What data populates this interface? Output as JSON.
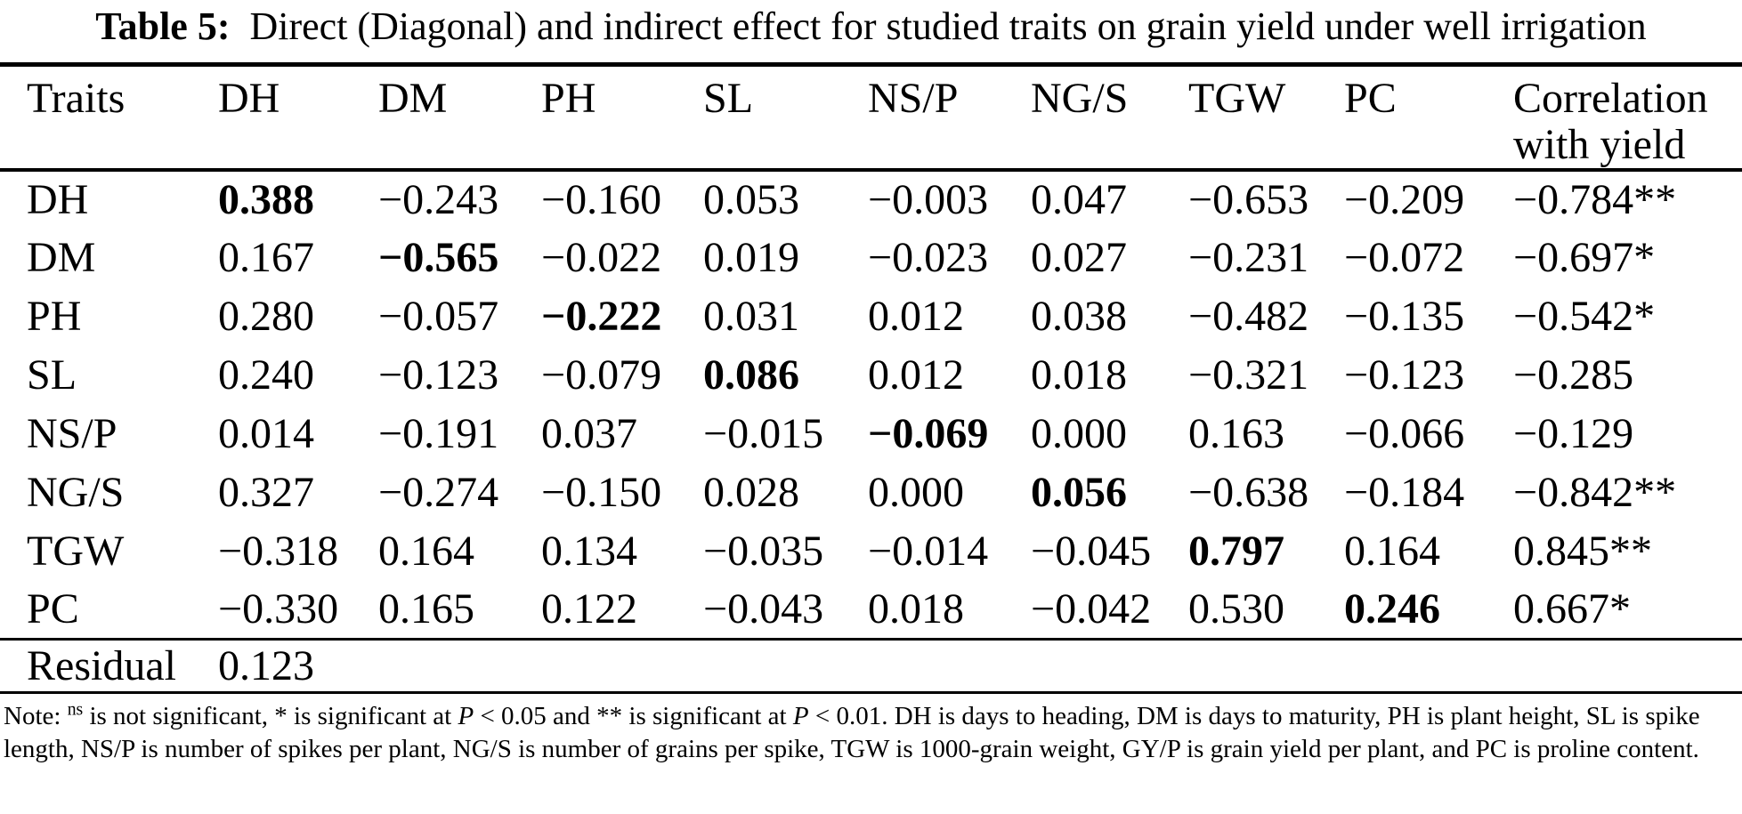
{
  "title": {
    "label": "Table 5:",
    "text": "Direct (Diagonal) and indirect effect for studied traits on grain yield under well irrigation"
  },
  "table": {
    "columns": [
      "Traits",
      "DH",
      "DM",
      "PH",
      "SL",
      "NS/P",
      "NG/S",
      "TGW",
      "PC",
      "Correlation with yield"
    ],
    "rows": [
      {
        "trait": "DH",
        "bold_col": 0,
        "values": [
          "0.388",
          "−0.243",
          "−0.160",
          "0.053",
          "−0.003",
          "0.047",
          "−0.653",
          "−0.209",
          "−0.784**"
        ]
      },
      {
        "trait": "DM",
        "bold_col": 1,
        "values": [
          "0.167",
          "−0.565",
          "−0.022",
          "0.019",
          "−0.023",
          "0.027",
          "−0.231",
          "−0.072",
          "−0.697*"
        ]
      },
      {
        "trait": "PH",
        "bold_col": 2,
        "values": [
          "0.280",
          "−0.057",
          "−0.222",
          "0.031",
          "0.012",
          "0.038",
          "−0.482",
          "−0.135",
          "−0.542*"
        ]
      },
      {
        "trait": "SL",
        "bold_col": 3,
        "values": [
          "0.240",
          "−0.123",
          "−0.079",
          "0.086",
          "0.012",
          "0.018",
          "−0.321",
          "−0.123",
          "−0.285"
        ]
      },
      {
        "trait": "NS/P",
        "bold_col": 4,
        "values": [
          "0.014",
          "−0.191",
          "0.037",
          "−0.015",
          "−0.069",
          "0.000",
          "0.163",
          "−0.066",
          "−0.129"
        ]
      },
      {
        "trait": "NG/S",
        "bold_col": 5,
        "values": [
          "0.327",
          "−0.274",
          "−0.150",
          "0.028",
          "0.000",
          "0.056",
          "−0.638",
          "−0.184",
          "−0.842**"
        ]
      },
      {
        "trait": "TGW",
        "bold_col": 6,
        "values": [
          "−0.318",
          "0.164",
          "0.134",
          "−0.035",
          "−0.014",
          "−0.045",
          "0.797",
          "0.164",
          "0.845**"
        ]
      },
      {
        "trait": "PC",
        "bold_col": 7,
        "values": [
          "−0.330",
          "0.165",
          "0.122",
          "−0.043",
          "0.018",
          "−0.042",
          "0.530",
          "0.246",
          "0.667*"
        ]
      }
    ],
    "residual": {
      "label": "Residual",
      "value": "0.123"
    }
  },
  "note": {
    "segments": [
      {
        "text": "Note: ",
        "style": "normal"
      },
      {
        "text": "ns",
        "style": "sup"
      },
      {
        "text": " is not significant, * is significant at ",
        "style": "normal"
      },
      {
        "text": "P",
        "style": "italic"
      },
      {
        "text": " < 0.05 and ** is significant at ",
        "style": "normal"
      },
      {
        "text": "P",
        "style": "italic"
      },
      {
        "text": " < 0.01. DH is days to heading, DM is days to maturity, PH is plant height, SL is spike length, NS/P is number of spikes per plant, NG/S is number of grains per spike, TGW is 1000-grain weight, GY/P is grain yield per plant, and PC is proline content.",
        "style": "normal"
      }
    ]
  }
}
